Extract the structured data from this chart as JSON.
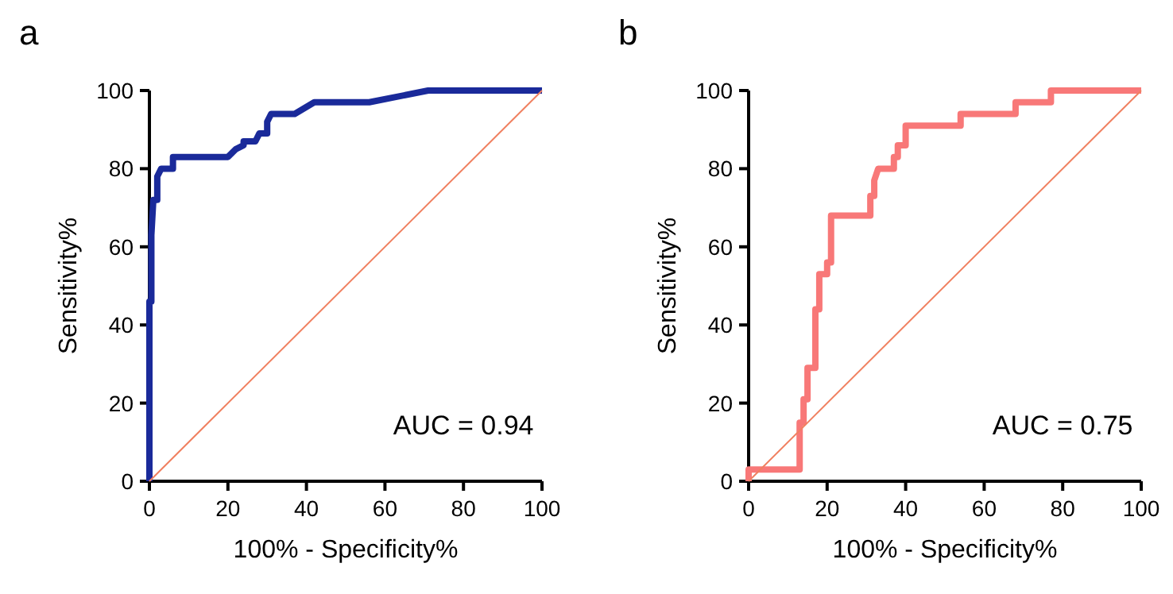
{
  "chart_data": [
    {
      "type": "step",
      "title": "a",
      "xlabel": "100% - Specificity%",
      "ylabel": "Sensitivity%",
      "xlim": [
        0,
        100
      ],
      "ylim": [
        0,
        100
      ],
      "xticks": [
        0,
        20,
        40,
        60,
        80,
        100
      ],
      "yticks": [
        0,
        20,
        40,
        60,
        80,
        100
      ],
      "grid": false,
      "marker": "none",
      "annotations": [
        "AUC = 0.94"
      ],
      "series": [
        {
          "color": "#1a2a9a",
          "x": [
            0,
            0,
            0.5,
            0.5,
            1,
            2,
            2,
            3,
            6,
            6,
            20,
            22,
            24,
            24,
            27,
            28,
            30,
            30,
            31,
            37,
            42,
            56,
            71,
            100
          ],
          "values": [
            0,
            46,
            46,
            63,
            72,
            72,
            78,
            80,
            80,
            83,
            83,
            85,
            86,
            87,
            87,
            89,
            89,
            92,
            94,
            94,
            97,
            97,
            100,
            100
          ]
        },
        {
          "type": "line",
          "color": "#f08060",
          "x": [
            0,
            100
          ],
          "values": [
            0,
            100
          ]
        }
      ]
    },
    {
      "type": "step",
      "title": "b",
      "xlabel": "100% - Specificity%",
      "ylabel": "Sensitivity%",
      "xlim": [
        0,
        100
      ],
      "ylim": [
        0,
        100
      ],
      "xticks": [
        0,
        20,
        40,
        60,
        80,
        100
      ],
      "yticks": [
        0,
        20,
        40,
        60,
        80,
        100
      ],
      "grid": false,
      "marker": "none",
      "annotations": [
        "AUC = 0.75"
      ],
      "series": [
        {
          "color": "#f87878",
          "x": [
            0,
            0,
            13,
            13,
            14,
            14,
            15,
            15,
            17,
            17,
            18,
            18,
            20,
            20,
            21,
            21,
            31,
            31,
            32,
            32,
            33,
            37,
            37,
            38,
            38,
            40,
            40,
            54,
            54,
            68,
            68,
            77,
            77,
            100
          ],
          "values": [
            0,
            3,
            3,
            15,
            15,
            21,
            21,
            29,
            29,
            44,
            44,
            53,
            53,
            56,
            56,
            68,
            68,
            73,
            73,
            77,
            80,
            80,
            83,
            83,
            86,
            86,
            91,
            91,
            94,
            94,
            97,
            97,
            100,
            100
          ]
        },
        {
          "type": "line",
          "color": "#f08060",
          "x": [
            0,
            100
          ],
          "values": [
            0,
            100
          ]
        }
      ]
    }
  ]
}
